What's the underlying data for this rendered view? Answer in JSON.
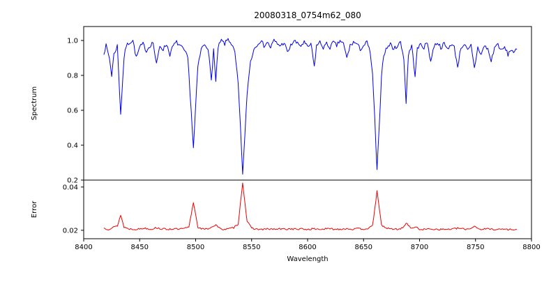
{
  "chart_data": {
    "type": "line",
    "title": "20080318_0754m62_080",
    "xlabel": "Wavelength",
    "xlim": [
      8400,
      8800
    ],
    "x_ticks": [
      8400,
      8450,
      8500,
      8550,
      8600,
      8650,
      8700,
      8750,
      8800
    ],
    "grid": false,
    "legend": "none",
    "panels": [
      {
        "name": "spectrum",
        "ylabel": "Spectrum",
        "ylim": [
          0.2,
          1.08
        ],
        "yticks": [
          0.2,
          0.4,
          0.6,
          0.8,
          1.0
        ],
        "ytick_labels": [
          "0.2",
          "0.4",
          "0.6",
          "0.8",
          "1.0"
        ],
        "line_color": "#0000ee",
        "noise_amplitude": 0.012,
        "noise_seed": 7,
        "anchors": [
          [
            8418,
            0.93
          ],
          [
            8420,
            0.97
          ],
          [
            8423,
            0.9
          ],
          [
            8425,
            0.8
          ],
          [
            8427,
            0.92
          ],
          [
            8430,
            0.97
          ],
          [
            8433,
            0.58
          ],
          [
            8436,
            0.9
          ],
          [
            8438,
            0.97
          ],
          [
            8441,
            0.99
          ],
          [
            8444,
            1.0
          ],
          [
            8447,
            0.9
          ],
          [
            8450,
            0.96
          ],
          [
            8453,
            0.98
          ],
          [
            8456,
            0.94
          ],
          [
            8459,
            0.97
          ],
          [
            8462,
            0.99
          ],
          [
            8465,
            0.86
          ],
          [
            8468,
            0.97
          ],
          [
            8471,
            0.95
          ],
          [
            8474,
            0.98
          ],
          [
            8477,
            0.92
          ],
          [
            8480,
            0.97
          ],
          [
            8483,
            0.99
          ],
          [
            8486,
            0.97
          ],
          [
            8490,
            0.94
          ],
          [
            8493,
            0.9
          ],
          [
            8496,
            0.6
          ],
          [
            8498,
            0.38
          ],
          [
            8500,
            0.62
          ],
          [
            8502,
            0.85
          ],
          [
            8505,
            0.95
          ],
          [
            8508,
            0.98
          ],
          [
            8511,
            0.96
          ],
          [
            8514,
            0.77
          ],
          [
            8516,
            0.95
          ],
          [
            8518,
            0.76
          ],
          [
            8520,
            0.96
          ],
          [
            8523,
            1.0
          ],
          [
            8526,
            0.98
          ],
          [
            8529,
            1.01
          ],
          [
            8532,
            0.98
          ],
          [
            8535,
            0.93
          ],
          [
            8538,
            0.75
          ],
          [
            8540,
            0.5
          ],
          [
            8542,
            0.24
          ],
          [
            8544,
            0.45
          ],
          [
            8546,
            0.7
          ],
          [
            8549,
            0.88
          ],
          [
            8552,
            0.95
          ],
          [
            8555,
            0.98
          ],
          [
            8558,
            1.0
          ],
          [
            8561,
            0.97
          ],
          [
            8564,
            0.99
          ],
          [
            8567,
            0.96
          ],
          [
            8570,
            1.0
          ],
          [
            8573,
            0.98
          ],
          [
            8576,
            0.97
          ],
          [
            8579,
            0.99
          ],
          [
            8582,
            0.93
          ],
          [
            8585,
            0.97
          ],
          [
            8588,
            1.0
          ],
          [
            8591,
            0.98
          ],
          [
            8594,
            0.97
          ],
          [
            8597,
            0.99
          ],
          [
            8600,
            0.96
          ],
          [
            8603,
            0.98
          ],
          [
            8606,
            0.85
          ],
          [
            8608,
            0.97
          ],
          [
            8611,
            0.99
          ],
          [
            8614,
            0.96
          ],
          [
            8617,
            0.98
          ],
          [
            8620,
            0.96
          ],
          [
            8623,
            0.99
          ],
          [
            8626,
            0.97
          ],
          [
            8629,
            1.0
          ],
          [
            8632,
            0.98
          ],
          [
            8635,
            0.9
          ],
          [
            8638,
            0.97
          ],
          [
            8641,
            0.99
          ],
          [
            8644,
            0.98
          ],
          [
            8647,
            0.95
          ],
          [
            8650,
            0.97
          ],
          [
            8653,
            0.99
          ],
          [
            8656,
            0.93
          ],
          [
            8658,
            0.8
          ],
          [
            8660,
            0.55
          ],
          [
            8662,
            0.25
          ],
          [
            8664,
            0.5
          ],
          [
            8666,
            0.8
          ],
          [
            8668,
            0.92
          ],
          [
            8671,
            0.96
          ],
          [
            8674,
            0.98
          ],
          [
            8677,
            0.95
          ],
          [
            8680,
            0.97
          ],
          [
            8683,
            0.99
          ],
          [
            8686,
            0.9
          ],
          [
            8688,
            0.64
          ],
          [
            8690,
            0.92
          ],
          [
            8693,
            0.97
          ],
          [
            8696,
            0.8
          ],
          [
            8698,
            0.95
          ],
          [
            8701,
            0.98
          ],
          [
            8704,
            0.96
          ],
          [
            8707,
            0.99
          ],
          [
            8710,
            0.88
          ],
          [
            8713,
            0.97
          ],
          [
            8716,
            0.99
          ],
          [
            8719,
            0.96
          ],
          [
            8722,
            0.98
          ],
          [
            8725,
            0.95
          ],
          [
            8728,
            0.98
          ],
          [
            8731,
            0.96
          ],
          [
            8734,
            0.85
          ],
          [
            8737,
            0.96
          ],
          [
            8740,
            0.98
          ],
          [
            8743,
            0.94
          ],
          [
            8746,
            0.97
          ],
          [
            8749,
            0.84
          ],
          [
            8752,
            0.96
          ],
          [
            8755,
            0.92
          ],
          [
            8758,
            0.97
          ],
          [
            8761,
            0.95
          ],
          [
            8764,
            0.88
          ],
          [
            8767,
            0.96
          ],
          [
            8770,
            0.98
          ],
          [
            8773,
            0.94
          ],
          [
            8776,
            0.96
          ],
          [
            8779,
            0.92
          ],
          [
            8782,
            0.95
          ],
          [
            8785,
            0.93
          ],
          [
            8787,
            0.95
          ]
        ]
      },
      {
        "name": "error",
        "ylabel": "Error",
        "ylim": [
          0.0161,
          0.0432
        ],
        "yticks": [
          0.02,
          0.04
        ],
        "ytick_labels": [
          "0.02",
          "0.04"
        ],
        "line_color": "#ee0000",
        "noise_amplitude": 0.0004,
        "noise_seed": 13,
        "anchors": [
          [
            8418,
            0.021
          ],
          [
            8422,
            0.0205
          ],
          [
            8426,
            0.0213
          ],
          [
            8430,
            0.022
          ],
          [
            8433,
            0.027
          ],
          [
            8436,
            0.0215
          ],
          [
            8440,
            0.0207
          ],
          [
            8445,
            0.0205
          ],
          [
            8450,
            0.0206
          ],
          [
            8455,
            0.021
          ],
          [
            8460,
            0.0205
          ],
          [
            8465,
            0.0212
          ],
          [
            8470,
            0.0206
          ],
          [
            8475,
            0.0205
          ],
          [
            8480,
            0.0207
          ],
          [
            8485,
            0.0205
          ],
          [
            8490,
            0.0208
          ],
          [
            8494,
            0.0215
          ],
          [
            8498,
            0.033
          ],
          [
            8502,
            0.0215
          ],
          [
            8506,
            0.0206
          ],
          [
            8510,
            0.0205
          ],
          [
            8514,
            0.0215
          ],
          [
            8518,
            0.0225
          ],
          [
            8522,
            0.0206
          ],
          [
            8526,
            0.0205
          ],
          [
            8530,
            0.0207
          ],
          [
            8534,
            0.0212
          ],
          [
            8538,
            0.023
          ],
          [
            8542,
            0.042
          ],
          [
            8546,
            0.024
          ],
          [
            8550,
            0.021
          ],
          [
            8555,
            0.0205
          ],
          [
            8560,
            0.0204
          ],
          [
            8565,
            0.0206
          ],
          [
            8570,
            0.0205
          ],
          [
            8575,
            0.0206
          ],
          [
            8580,
            0.0205
          ],
          [
            8585,
            0.0207
          ],
          [
            8590,
            0.0205
          ],
          [
            8595,
            0.0206
          ],
          [
            8600,
            0.0204
          ],
          [
            8605,
            0.0207
          ],
          [
            8610,
            0.0205
          ],
          [
            8615,
            0.0206
          ],
          [
            8620,
            0.0207
          ],
          [
            8625,
            0.0205
          ],
          [
            8630,
            0.0206
          ],
          [
            8635,
            0.0208
          ],
          [
            8640,
            0.0205
          ],
          [
            8645,
            0.0207
          ],
          [
            8650,
            0.0206
          ],
          [
            8655,
            0.021
          ],
          [
            8658,
            0.022
          ],
          [
            8662,
            0.038
          ],
          [
            8666,
            0.0225
          ],
          [
            8670,
            0.021
          ],
          [
            8675,
            0.0206
          ],
          [
            8680,
            0.0205
          ],
          [
            8685,
            0.021
          ],
          [
            8688,
            0.0235
          ],
          [
            8692,
            0.021
          ],
          [
            8696,
            0.0215
          ],
          [
            8700,
            0.0205
          ],
          [
            8705,
            0.0204
          ],
          [
            8710,
            0.0207
          ],
          [
            8715,
            0.0205
          ],
          [
            8720,
            0.0204
          ],
          [
            8725,
            0.0205
          ],
          [
            8730,
            0.0206
          ],
          [
            8735,
            0.021
          ],
          [
            8740,
            0.0205
          ],
          [
            8745,
            0.0207
          ],
          [
            8749,
            0.022
          ],
          [
            8753,
            0.0206
          ],
          [
            8757,
            0.0205
          ],
          [
            8761,
            0.0207
          ],
          [
            8765,
            0.0205
          ],
          [
            8770,
            0.0204
          ],
          [
            8775,
            0.0206
          ],
          [
            8780,
            0.0203
          ],
          [
            8785,
            0.0205
          ],
          [
            8787,
            0.0204
          ]
        ]
      }
    ]
  }
}
